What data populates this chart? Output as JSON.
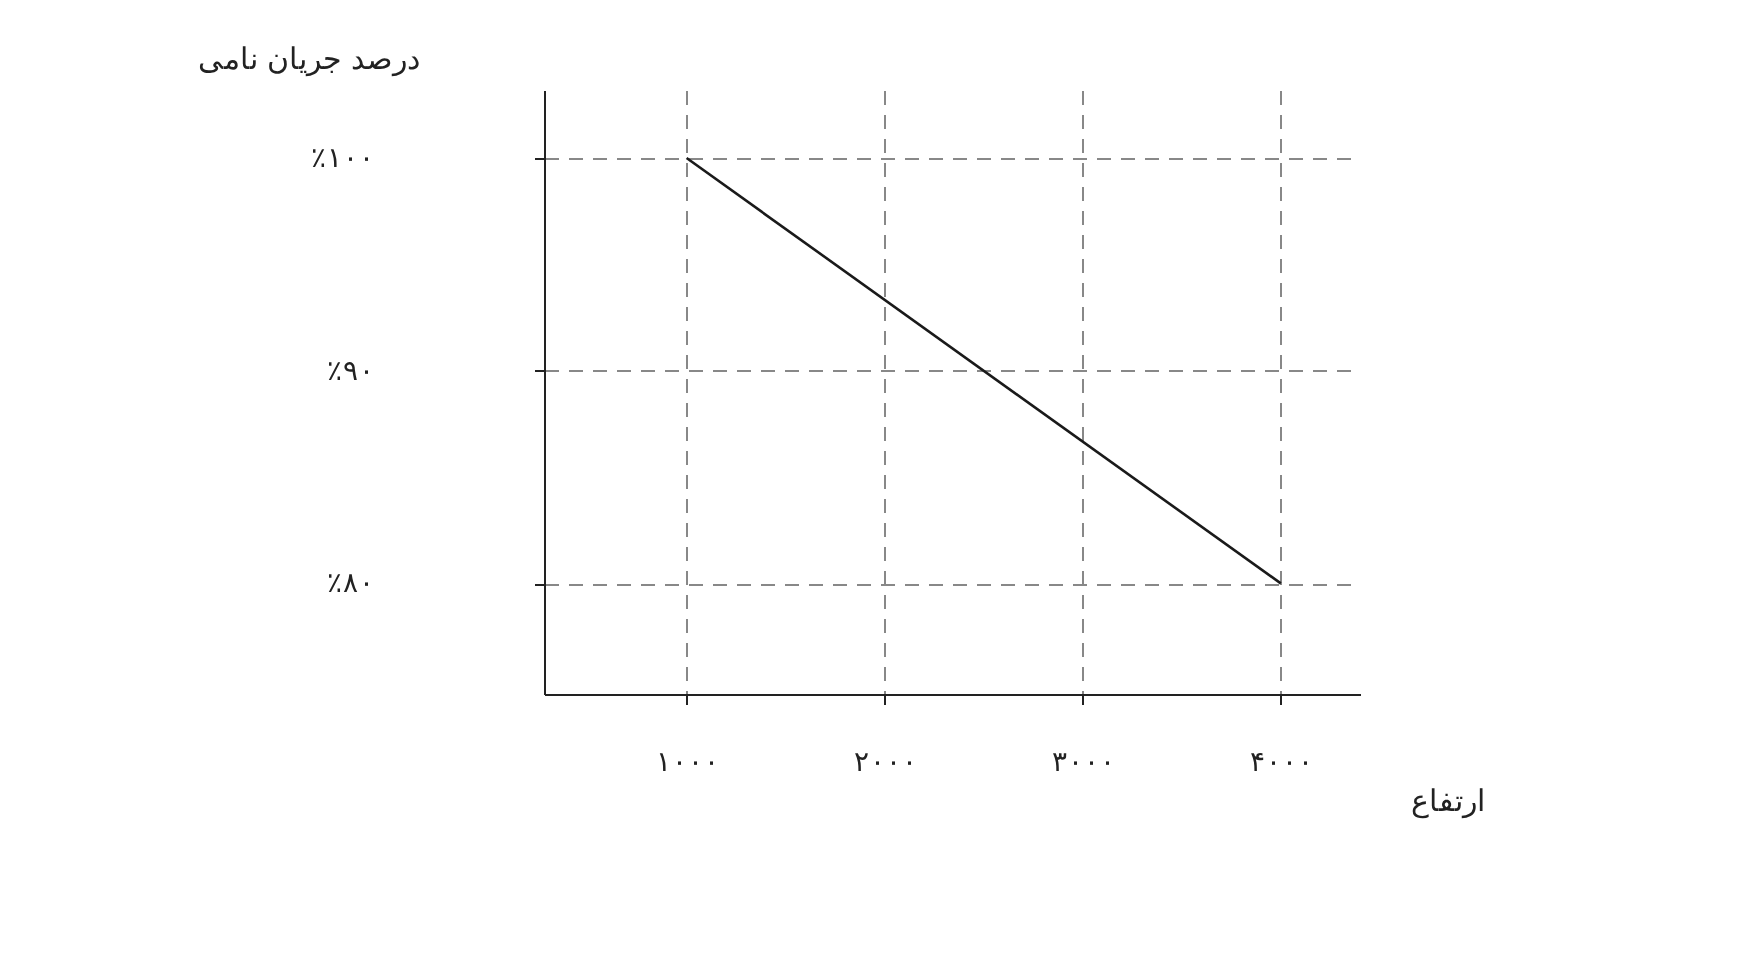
{
  "chart_data": {
    "type": "line",
    "xlabel": "ارتفاع",
    "ylabel": "درصد جریان نامی",
    "x": [
      1000,
      4000
    ],
    "series": [
      {
        "color": "#1a1a1a",
        "values": [
          100,
          80
        ]
      }
    ],
    "xlim": [
      280,
      4400
    ],
    "ylim": [
      74.8,
      103.2
    ],
    "xticks": [
      {
        "value": 1000,
        "label": "۱۰۰۰"
      },
      {
        "value": 2000,
        "label": "۲۰۰۰"
      },
      {
        "value": 3000,
        "label": "۳۰۰۰"
      },
      {
        "value": 4000,
        "label": "۴۰۰۰"
      }
    ],
    "yticks": [
      {
        "value": 80,
        "label": "٪۸۰"
      },
      {
        "value": 90,
        "label": "٪۹۰"
      },
      {
        "value": 100,
        "label": "٪۱۰۰"
      }
    ],
    "grid": true,
    "line_style": "solid"
  }
}
